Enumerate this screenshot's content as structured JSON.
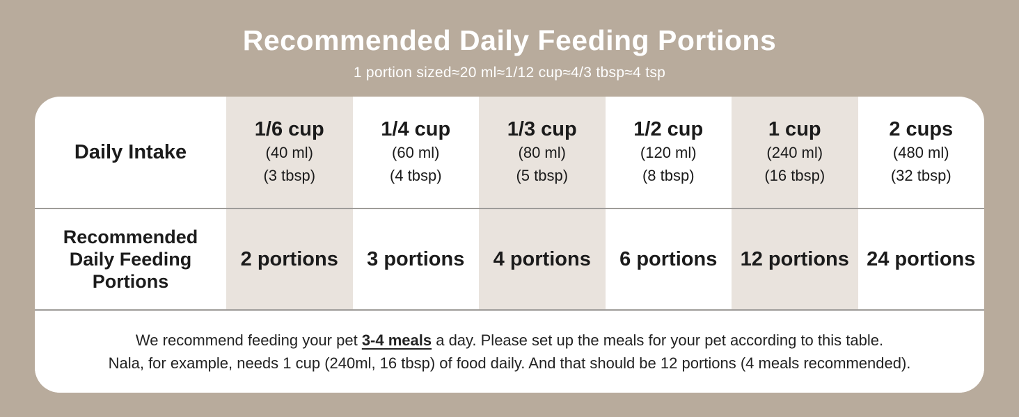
{
  "header": {
    "title": "Recommended Daily Feeding Portions",
    "subtitle": "1 portion sized≈20 ml≈1/12 cup≈4/3 tbsp≈4 tsp"
  },
  "table": {
    "intake_label": "Daily Intake",
    "portions_label_lines": [
      "Recommended",
      "Daily Feeding",
      "Portions"
    ],
    "columns": [
      {
        "cup": "1/6 cup",
        "ml": "(40 ml)",
        "tbsp": "(3 tbsp)",
        "portions": "2 portions"
      },
      {
        "cup": "1/4 cup",
        "ml": "(60 ml)",
        "tbsp": "(4 tbsp)",
        "portions": "3 portions"
      },
      {
        "cup": "1/3 cup",
        "ml": "(80 ml)",
        "tbsp": "(5 tbsp)",
        "portions": "4 portions"
      },
      {
        "cup": "1/2 cup",
        "ml": "(120 ml)",
        "tbsp": "(8 tbsp)",
        "portions": "6 portions"
      },
      {
        "cup": "1 cup",
        "ml": "(240 ml)",
        "tbsp": "(16 tbsp)",
        "portions": "12 portions"
      },
      {
        "cup": "2 cups",
        "ml": "(480 ml)",
        "tbsp": "(32 tbsp)",
        "portions": "24 portions"
      }
    ]
  },
  "footer": {
    "line1_prefix": "We recommend feeding your pet ",
    "line1_highlight": "3-4 meals",
    "line1_suffix": " a day. Please set up the meals for your pet according to this table.",
    "line2": "Nala, for example, needs 1 cup (240ml, 16 tbsp) of food daily. And that should be 12 portions (4 meals recommended)."
  },
  "colors": {
    "background": "#b8ab9c",
    "card": "#ffffff",
    "shaded_column": "#e9e3dd",
    "divider": "#9e9c99",
    "title_text": "#ffffff",
    "body_text": "#1b1b1b"
  },
  "chart_data": {
    "type": "table",
    "title": "Recommended Daily Feeding Portions",
    "subtitle": "1 portion sized≈20 ml≈1/12 cup≈4/3 tbsp≈4 tsp",
    "row_headers": [
      "Daily Intake",
      "Recommended Daily Feeding Portions"
    ],
    "data": [
      {
        "daily_intake_cup": "1/6 cup",
        "daily_intake_ml": 40,
        "daily_intake_tbsp": 3,
        "portions": 2
      },
      {
        "daily_intake_cup": "1/4 cup",
        "daily_intake_ml": 60,
        "daily_intake_tbsp": 4,
        "portions": 3
      },
      {
        "daily_intake_cup": "1/3 cup",
        "daily_intake_ml": 80,
        "daily_intake_tbsp": 5,
        "portions": 4
      },
      {
        "daily_intake_cup": "1/2 cup",
        "daily_intake_ml": 120,
        "daily_intake_tbsp": 8,
        "portions": 6
      },
      {
        "daily_intake_cup": "1 cup",
        "daily_intake_ml": 240,
        "daily_intake_tbsp": 16,
        "portions": 12
      },
      {
        "daily_intake_cup": "2 cups",
        "daily_intake_ml": 480,
        "daily_intake_tbsp": 32,
        "portions": 24
      }
    ],
    "notes": [
      "We recommend feeding your pet 3-4 meals a day. Please set up the meals for your pet according to this table.",
      "Nala, for example, needs 1 cup (240ml, 16 tbsp) of food daily. And that should be 12 portions (4 meals recommended)."
    ]
  }
}
